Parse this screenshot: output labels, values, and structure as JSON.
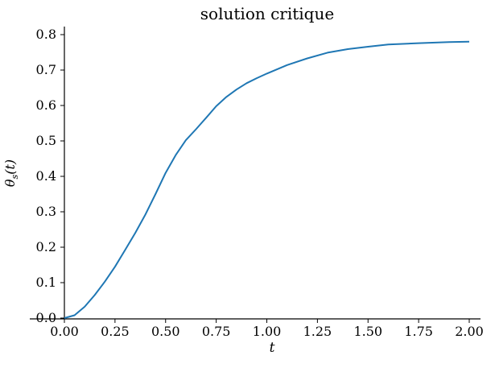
{
  "title": "solution critique",
  "axes": {
    "x_label": "t",
    "y_label": {
      "base": "θ",
      "sub": "s",
      "rest": "(t)"
    },
    "x_ticks": [
      "0.00",
      "0.25",
      "0.50",
      "0.75",
      "1.00",
      "1.25",
      "1.50",
      "1.75",
      "2.00"
    ],
    "y_ticks": [
      "0.0",
      "0.1",
      "0.2",
      "0.3",
      "0.4",
      "0.5",
      "0.6",
      "0.7",
      "0.8"
    ]
  },
  "colors": {
    "line": "#1f77b4",
    "spine": "#000000",
    "text": "#000000",
    "background": "#ffffff"
  },
  "chart_data": {
    "type": "line",
    "title": "solution critique",
    "xlabel": "t",
    "ylabel": "θ_s(t)",
    "xlim": [
      0.0,
      2.0
    ],
    "ylim": [
      0.0,
      0.8
    ],
    "x_tick_values": [
      0.0,
      0.25,
      0.5,
      0.75,
      1.0,
      1.25,
      1.5,
      1.75,
      2.0
    ],
    "y_tick_values": [
      0.0,
      0.1,
      0.2,
      0.3,
      0.4,
      0.5,
      0.6,
      0.7,
      0.8
    ],
    "grid": false,
    "legend": "none",
    "line_color": "#1f77b4",
    "series": [
      {
        "name": "θ_s(t)",
        "x": [
          0.0,
          0.05,
          0.1,
          0.15,
          0.2,
          0.25,
          0.3,
          0.35,
          0.4,
          0.45,
          0.5,
          0.55,
          0.6,
          0.65,
          0.7,
          0.75,
          0.8,
          0.85,
          0.9,
          0.95,
          1.0,
          1.1,
          1.2,
          1.3,
          1.4,
          1.5,
          1.6,
          1.75,
          1.9,
          2.0
        ],
        "y": [
          0.0,
          0.008,
          0.032,
          0.065,
          0.103,
          0.145,
          0.192,
          0.24,
          0.292,
          0.35,
          0.41,
          0.46,
          0.502,
          0.533,
          0.565,
          0.598,
          0.624,
          0.645,
          0.663,
          0.677,
          0.69,
          0.714,
          0.733,
          0.749,
          0.759,
          0.766,
          0.772,
          0.776,
          0.779,
          0.78
        ]
      }
    ]
  }
}
